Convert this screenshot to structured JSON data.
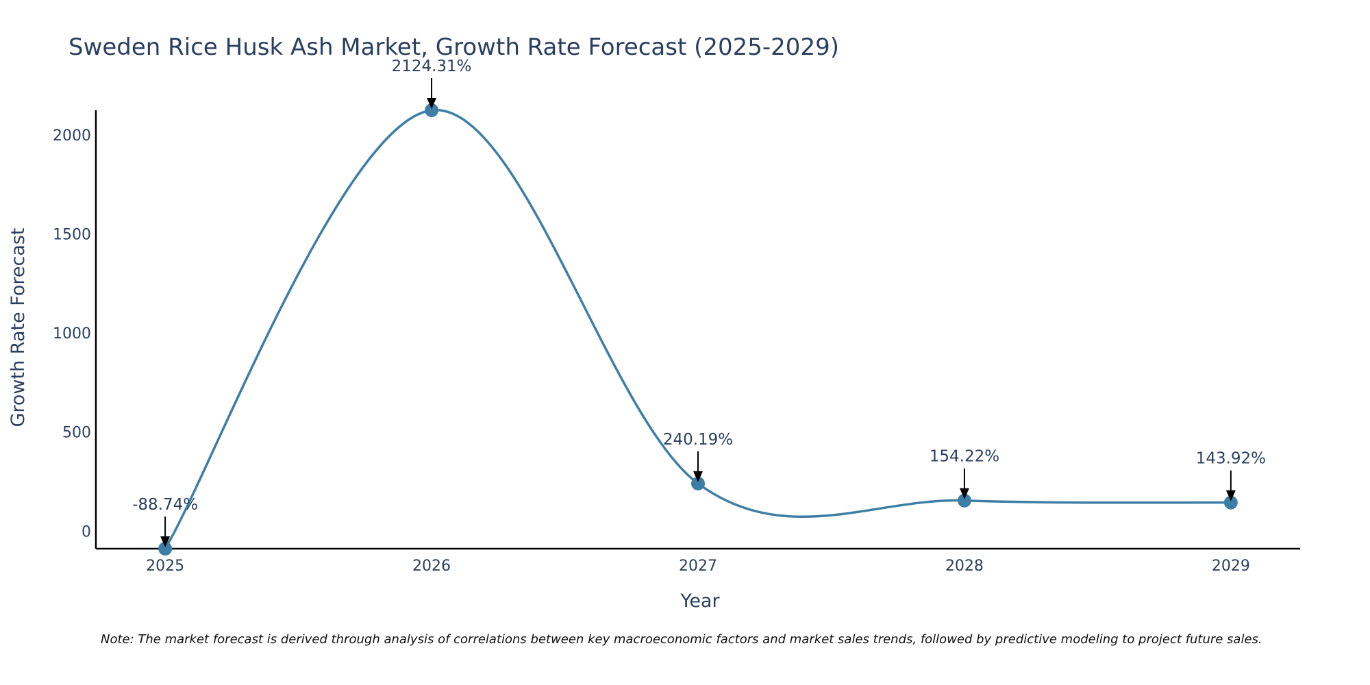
{
  "chart_data": {
    "type": "line",
    "title": "Sweden Rice Husk Ash Market, Growth Rate Forecast (2025-2029)",
    "xlabel": "Year",
    "ylabel": "Growth Rate Forecast",
    "categories": [
      "2025",
      "2026",
      "2027",
      "2028",
      "2029"
    ],
    "x": [
      2025,
      2026,
      2027,
      2028,
      2029
    ],
    "values": [
      -88.74,
      2124.31,
      240.19,
      154.22,
      143.92
    ],
    "data_labels": [
      "-88.74%",
      "2124.31%",
      "240.19%",
      "154.22%",
      "143.92%"
    ],
    "yticks": [
      0,
      500,
      1000,
      1500,
      2000
    ],
    "ytick_labels": [
      "0",
      "500",
      "1000",
      "1500",
      "2000"
    ],
    "xtick_labels": [
      "2025",
      "2026",
      "2027",
      "2028",
      "2029"
    ],
    "xlim": [
      2024.74,
      2029.26
    ],
    "ylim": [
      -88.74,
      2124.31
    ],
    "grid": false,
    "line_shape": "spline",
    "line_color": "#3d7ea6",
    "marker_color": "#3d7ea6",
    "annotation_arrow_color": "#000000"
  },
  "note": "Note: The market forecast is derived through analysis of correlations between key macroeconomic factors and market sales trends, followed by predictive modeling to project future sales."
}
